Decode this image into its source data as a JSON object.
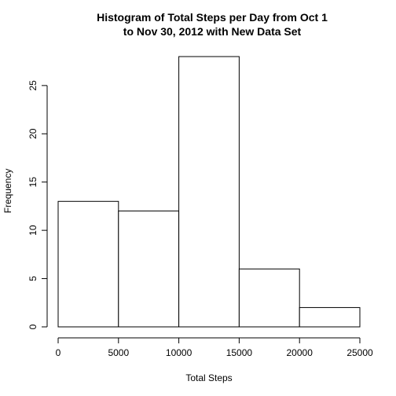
{
  "chart_data": {
    "type": "bar",
    "title_line1": "Histogram of Total Steps per Day from Oct 1",
    "title_line2": "to Nov 30, 2012 with New Data Set",
    "xlabel": "Total Steps",
    "ylabel": "Frequency",
    "bins": [
      {
        "x_start": 0,
        "x_end": 5000,
        "count": 13
      },
      {
        "x_start": 5000,
        "x_end": 10000,
        "count": 12
      },
      {
        "x_start": 10000,
        "x_end": 15000,
        "count": 28
      },
      {
        "x_start": 15000,
        "x_end": 20000,
        "count": 6
      },
      {
        "x_start": 20000,
        "x_end": 25000,
        "count": 2
      }
    ],
    "xlim": [
      0,
      25000
    ],
    "ylim": [
      0,
      28
    ],
    "x_ticks": [
      0,
      5000,
      10000,
      15000,
      20000,
      25000
    ],
    "y_ticks": [
      0,
      5,
      10,
      15,
      20,
      25
    ],
    "grid": false,
    "bar_fill": "#ffffff",
    "bar_stroke": "#000000"
  }
}
